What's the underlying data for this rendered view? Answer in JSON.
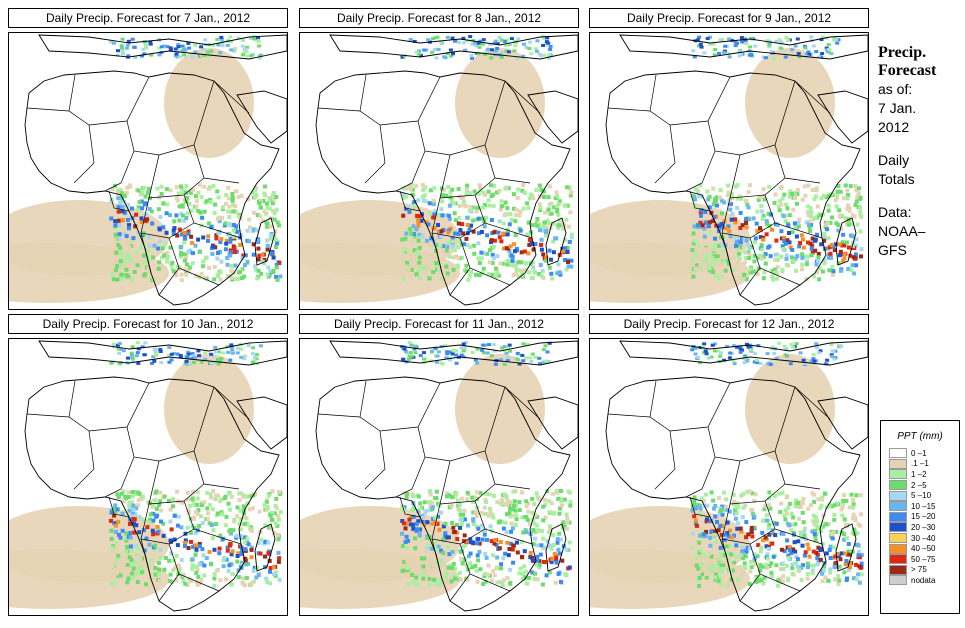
{
  "panels": [
    {
      "title": "Daily Precip. Forecast for  7 Jan., 2012"
    },
    {
      "title": "Daily Precip. Forecast for  8 Jan., 2012"
    },
    {
      "title": "Daily Precip. Forecast for  9 Jan., 2012"
    },
    {
      "title": "Daily Precip. Forecast for  10 Jan., 2012"
    },
    {
      "title": "Daily Precip. Forecast for  11 Jan., 2012"
    },
    {
      "title": "Daily Precip. Forecast for  12 Jan., 2012"
    }
  ],
  "side": {
    "line1": "Precip.",
    "line2": "Forecast",
    "line3": "as of:",
    "line4": "7 Jan.",
    "line5": "2012",
    "line6": "Daily",
    "line7": "Totals",
    "line8": "Data:",
    "line9": "NOAA–",
    "line10": "GFS"
  },
  "legend": {
    "title": "PPT (mm)",
    "classes": [
      {
        "label": "0 –1",
        "color": "#ffffff"
      },
      {
        "label": ".1 –1",
        "color": "#e6d3b3"
      },
      {
        "label": "1 –2",
        "color": "#a8f0a0"
      },
      {
        "label": "2 –5",
        "color": "#6cdc6c"
      },
      {
        "label": "5 –10",
        "color": "#a8d8f0"
      },
      {
        "label": "10 –15",
        "color": "#6ab4f0"
      },
      {
        "label": "15 –20",
        "color": "#3c8cf0"
      },
      {
        "label": "20 –30",
        "color": "#1e50c8"
      },
      {
        "label": "30 –40",
        "color": "#f8d05a"
      },
      {
        "label": "40 –50",
        "color": "#f89028"
      },
      {
        "label": "50 –75",
        "color": "#e02810"
      },
      {
        "label": "> 75",
        "color": "#9a2a18"
      },
      {
        "label": "nodata",
        "color": "#cdcdcd"
      }
    ]
  }
}
